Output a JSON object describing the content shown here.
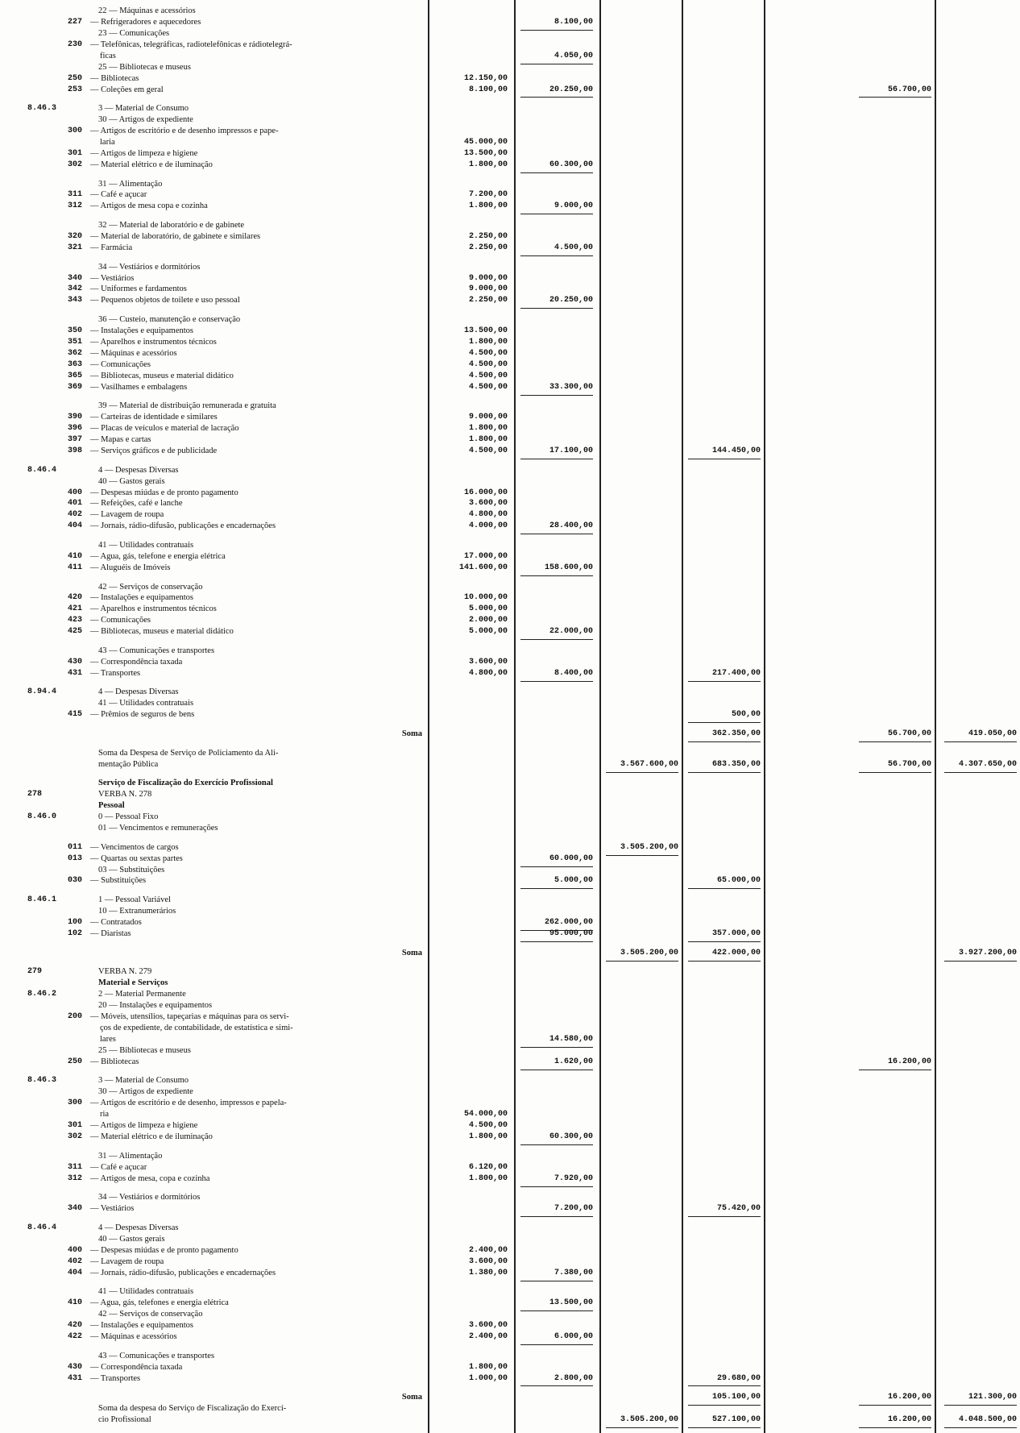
{
  "groups": [
    {
      "rows": [
        {
          "heading": "22 — Máquinas e acessórios"
        },
        {
          "code": "227",
          "text": "— Refrigeradores e aquecedores",
          "c2": "8.100,00"
        },
        {
          "heading": "23 — Comunicações"
        },
        {
          "code": "230",
          "text": "— Telefônicas, telegráficas, radiotelefônicas e rádiotelegrá-"
        },
        {
          "cont": "ficas",
          "c2": "4.050,00"
        },
        {
          "heading": "25 — Bibliotecas e museus"
        },
        {
          "code": "250",
          "text": "— Bibliotecas",
          "c1": "12.150,00"
        },
        {
          "code": "253",
          "text": "— Coleções em geral",
          "c1": "8.100,00",
          "c2": "20.250,00",
          "c5": "56.700,00"
        }
      ]
    },
    {
      "rows": [
        {
          "section": "8.46.3",
          "heading": "3 — Material de Consumo"
        },
        {
          "heading": "30 — Artigos de expediente"
        },
        {
          "code": "300",
          "text": "— Artigos de escritório e de desenho impressos e pape-"
        },
        {
          "cont": "laria",
          "c1": "45.000,00"
        },
        {
          "code": "301",
          "text": "— Artigos de limpeza e higiene",
          "c1": "13.500,00"
        },
        {
          "code": "302",
          "text": "— Material elétrico e de iluminação",
          "c1": "1.800,00",
          "c2": "60.300,00"
        }
      ]
    },
    {
      "rows": [
        {
          "heading": "31 — Alimentação"
        },
        {
          "code": "311",
          "text": "— Café e açucar",
          "c1": "7.200,00"
        },
        {
          "code": "312",
          "text": "— Artigos de mesa copa e cozinha",
          "c1": "1.800,00",
          "c2": "9.000,00"
        }
      ]
    },
    {
      "rows": [
        {
          "heading": "32 — Material de laboratório e de gabinete"
        },
        {
          "code": "320",
          "text": "— Material de laboratório, de gabinete e similares",
          "c1": "2.250,00"
        },
        {
          "code": "321",
          "text": "— Farmácia",
          "c1": "2.250,00",
          "c2": "4.500,00"
        }
      ]
    },
    {
      "rows": [
        {
          "heading": "34 — Vestiários e dormitórios"
        },
        {
          "code": "340",
          "text": "— Vestiários",
          "c1": "9.000,00"
        },
        {
          "code": "342",
          "text": "— Uniformes e fardamentos",
          "c1": "9.000,00"
        },
        {
          "code": "343",
          "text": "— Pequenos objetos de toilete e uso pessoal",
          "c1": "2.250,00",
          "c2": "20.250,00"
        }
      ]
    },
    {
      "rows": [
        {
          "heading": "36 — Custeio, manutenção e conservação"
        },
        {
          "code": "350",
          "text": "— Instalações e equipamentos",
          "c1": "13.500,00"
        },
        {
          "code": "351",
          "text": "— Aparelhos e instrumentos técnicos",
          "c1": "1.800,00"
        },
        {
          "code": "362",
          "text": "— Máquinas e acessórios",
          "c1": "4.500,00"
        },
        {
          "code": "363",
          "text": "— Comunicações",
          "c1": "4.500,00"
        },
        {
          "code": "365",
          "text": "— Bibliotecas, museus e material didático",
          "c1": "4.500,00"
        },
        {
          "code": "369",
          "text": "— Vasilhames e embalagens",
          "c1": "4.500,00",
          "c2": "33.300,00"
        }
      ]
    },
    {
      "rows": [
        {
          "heading": "39 — Material de distribuição remunerada e gratuita"
        },
        {
          "code": "390",
          "text": "— Carteiras de identidade e similares",
          "c1": "9.000,00"
        },
        {
          "code": "396",
          "text": "— Placas de veículos e material de lacração",
          "c1": "1.800,00"
        },
        {
          "code": "397",
          "text": "— Mapas e cartas",
          "c1": "1.800,00"
        },
        {
          "code": "398",
          "text": "— Serviços gráficos e de publicidade",
          "c1": "4.500,00",
          "c2": "17.100,00",
          "c4": "144.450,00"
        }
      ]
    },
    {
      "rows": [
        {
          "section": "8.46.4",
          "heading": "4 — Despesas Diversas"
        },
        {
          "heading": "40 — Gastos gerais"
        },
        {
          "code": "400",
          "text": "— Despesas miúdas e de pronto pagamento",
          "c1": "16.000,00"
        },
        {
          "code": "401",
          "text": "— Refeições, café e lanche",
          "c1": "3.600,00"
        },
        {
          "code": "402",
          "text": "— Lavagem de roupa",
          "c1": "4.800,00"
        },
        {
          "code": "404",
          "text": "— Jornais, rádio-difusão, publicações e encadernações",
          "c1": "4.000,00",
          "c2": "28.400,00"
        }
      ]
    },
    {
      "rows": [
        {
          "heading": "41 — Utilidades contratuais"
        },
        {
          "code": "410",
          "text": "— Agua, gás, telefone e energia elétrica",
          "c1": "17.000,00"
        },
        {
          "code": "411",
          "text": "— Aluguéis de Imóveis",
          "c1": "141.600,00",
          "c2": "158.600,00"
        }
      ]
    },
    {
      "rows": [
        {
          "heading": "42 — Serviços de conservação"
        },
        {
          "code": "420",
          "text": "— Instalações e equipamentos",
          "c1": "10.000,00"
        },
        {
          "code": "421",
          "text": "— Aparelhos e instrumentos técnicos",
          "c1": "5.000,00"
        },
        {
          "code": "423",
          "text": "— Comunicações",
          "c1": "2.000,00"
        },
        {
          "code": "425",
          "text": "— Bibliotecas, museus e material didático",
          "c1": "5.000,00",
          "c2": "22.000,00"
        }
      ]
    },
    {
      "rows": [
        {
          "heading": "43 — Comunicações e transportes"
        },
        {
          "code": "430",
          "text": "— Correspondência taxada",
          "c1": "3.600,00"
        },
        {
          "code": "431",
          "text": "— Transportes",
          "c1": "4.800,00",
          "c2": "8.400,00",
          "c4": "217.400,00"
        }
      ]
    },
    {
      "rows": [
        {
          "section": "8.94.4",
          "heading": "4 — Despesas Diversas"
        },
        {
          "heading": "41 — Utilidades contratuais"
        },
        {
          "code": "415",
          "text": "— Prêmios de seguros de bens",
          "c4": "500,00"
        }
      ]
    },
    {
      "rows": [
        {
          "right": "Soma",
          "c4": "362.350,00",
          "c5": "56.700,00",
          "c6": "419.050,00"
        }
      ]
    },
    {
      "rows": [
        {
          "heading": "Soma da Despesa de Serviço de Policiamento da Ali-"
        },
        {
          "heading": "mentação Pública",
          "c3": "3.567.600,00",
          "c4": "683.350,00",
          "c5": "56.700,00",
          "c6": "4.307.650,00"
        }
      ]
    },
    {
      "rows": [
        {
          "title": "Serviço de Fiscalização do Exercício Profissional"
        },
        {
          "section": "278",
          "heading": "VERBA N. 278"
        },
        {
          "title": "Pessoal"
        },
        {
          "section": "8.46.0",
          "heading": "0 — Pessoal Fixo"
        },
        {
          "heading": "01 — Vencimentos e remunerações"
        }
      ]
    },
    {
      "rows": [
        {
          "code": "011",
          "text": "— Vencimentos de cargos",
          "c3": "3.505.200,00"
        },
        {
          "code": "013",
          "text": "— Quartas ou sextas partes",
          "c2": "60.000,00"
        },
        {
          "heading": "03 — Substituições"
        },
        {
          "code": "030",
          "text": "— Substituições",
          "c2": "5.000,00",
          "c4": "65.000,00"
        }
      ]
    },
    {
      "rows": [
        {
          "section": "8.46.1",
          "heading": "1 — Pessoal Variável"
        },
        {
          "heading": "10 — Extranumerários"
        },
        {
          "code": "100",
          "text": "— Contratados",
          "c2": "262.000,00"
        },
        {
          "code": "102",
          "text": "— Diaristas",
          "c2": "95.000,00",
          "c4": "357.000,00"
        }
      ]
    },
    {
      "rows": [
        {
          "right": "Soma",
          "c3": "3.505.200,00",
          "c4": "422.000,00",
          "c6": "3.927.200,00"
        }
      ]
    },
    {
      "rows": [
        {
          "section": "279",
          "heading": "VERBA N. 279"
        },
        {
          "title": "Material e Serviços"
        },
        {
          "section": "8.46.2",
          "heading": "2 — Material Permanente"
        },
        {
          "heading": "20 — Instalações e equipamentos"
        },
        {
          "code": "200",
          "text": "— Móveis, utensílios, tapeçarias e máquinas para os servi-"
        },
        {
          "cont": "ços de expediente, de contabilidade, de estatística e simi-"
        },
        {
          "cont": "lares",
          "c2": "14.580,00"
        },
        {
          "heading": "25 — Bibliotecas e museus"
        },
        {
          "code": "250",
          "text": "— Bibliotecas",
          "c2": "1.620,00",
          "c5": "16.200,00"
        }
      ]
    },
    {
      "rows": [
        {
          "section": "8.46.3",
          "heading": "3 — Material de Consumo"
        },
        {
          "heading": "30 — Artigos de expediente"
        },
        {
          "code": "300",
          "text": "— Artigos de escritório e de desenho, impressos e papela-"
        },
        {
          "cont": "ria",
          "c1": "54.000,00"
        },
        {
          "code": "301",
          "text": "— Artigos de limpeza e higiene",
          "c1": "4.500,00"
        },
        {
          "code": "302",
          "text": "— Material elétrico e de iluminação",
          "c1": "1.800,00",
          "c2": "60.300,00"
        }
      ]
    },
    {
      "rows": [
        {
          "heading": "31 — Alimentação"
        },
        {
          "code": "311",
          "text": "— Café e açucar",
          "c1": "6.120,00"
        },
        {
          "code": "312",
          "text": "— Artigos de mesa, copa e cozinha",
          "c1": "1.800,00",
          "c2": "7.920,00"
        }
      ]
    },
    {
      "rows": [
        {
          "heading": "34 — Vestiários e dormitórios"
        },
        {
          "code": "340",
          "text": "— Vestiários",
          "c2": "7.200,00",
          "c4": "75.420,00"
        }
      ]
    },
    {
      "rows": [
        {
          "section": "8.46.4",
          "heading": "4 — Despesas Diversas"
        },
        {
          "heading": "40 — Gastos gerais"
        },
        {
          "code": "400",
          "text": "— Despesas miúdas e de pronto pagamento",
          "c1": "2.400,00"
        },
        {
          "code": "402",
          "text": "— Lavagem de roupa",
          "c1": "3.600,00"
        },
        {
          "code": "404",
          "text": "— Jornais, rádio-difusão, publicações e encadernações",
          "c1": "1.380,00",
          "c2": "7.380,00"
        }
      ]
    },
    {
      "rows": [
        {
          "heading": "41 — Utilidades contratuais"
        },
        {
          "code": "410",
          "text": "— Agua, gás, telefones e energia elétrica",
          "c2": "13.500,00"
        },
        {
          "heading": "42 — Serviços de conservação"
        },
        {
          "code": "420",
          "text": "— Instalações e equipamentos",
          "c1": "3.600,00"
        },
        {
          "code": "422",
          "text": "— Máquinas e acessórios",
          "c1": "2.400,00",
          "c2": "6.000,00"
        }
      ]
    },
    {
      "rows": [
        {
          "heading": "43 — Comunicações e transportes"
        },
        {
          "code": "430",
          "text": "— Correspondência taxada",
          "c1": "1.800,00"
        },
        {
          "code": "431",
          "text": "— Transportes",
          "c1": "1.000,00",
          "c2": "2.800,00",
          "c4": "29.680,00"
        }
      ]
    },
    {
      "rows": [
        {
          "right": "Soma",
          "c4": "105.100,00",
          "c5": "16.200,00",
          "c6": "121.300,00"
        },
        {
          "heading": "Soma da despesa do Serviço de Fiscalização do Exercí-"
        },
        {
          "heading": "cio Profissional",
          "c3": "3.505.200,00",
          "c4": "527.100,00",
          "c5": "16.200,00",
          "c6": "4.048.500,00"
        }
      ]
    }
  ]
}
